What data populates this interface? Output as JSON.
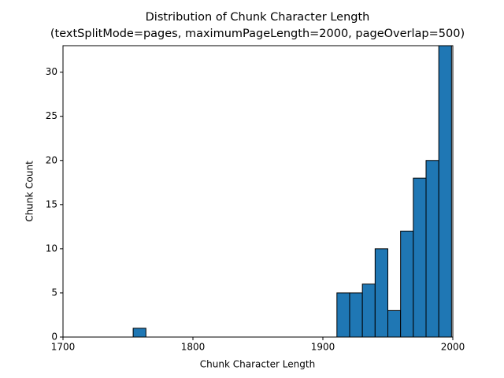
{
  "chart_data": {
    "type": "histogram",
    "title": "Distribution of Chunk Character Length",
    "subtitle": "(textSplitMode=pages, maximumPageLength=2000, pageOverlap=500)",
    "x_label": "Chunk Character Length",
    "y_label": "Chunk Count",
    "bins": [
      1754,
      1763.8,
      1773.6,
      1783.4,
      1793.2,
      1803,
      1812.8,
      1822.6,
      1832.4,
      1842.2,
      1852,
      1861.8,
      1871.6,
      1881.4,
      1891.2,
      1901,
      1910.8,
      1920.6,
      1930.4,
      1940.2,
      1950,
      1959.8,
      1969.6,
      1979.4,
      1989.2,
      1999
    ],
    "values": [
      1,
      0,
      0,
      0,
      0,
      0,
      0,
      0,
      0,
      0,
      0,
      0,
      0,
      0,
      0,
      0,
      5,
      5,
      6,
      10,
      3,
      12,
      18,
      20,
      33
    ],
    "color": "#1f77b4",
    "edge_color": "#000000",
    "xlim": [
      1700,
      2000
    ],
    "xticks": [
      1700,
      1800,
      1900,
      2000
    ],
    "ylim": [
      0,
      33
    ],
    "yticks": [
      0,
      5,
      10,
      15,
      20,
      25,
      30
    ]
  }
}
